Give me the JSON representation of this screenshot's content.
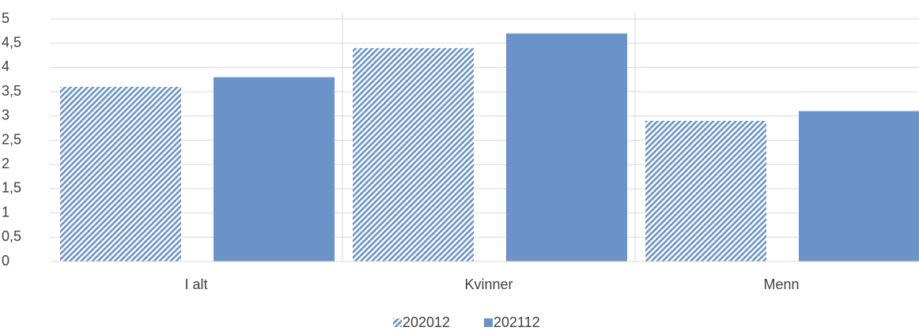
{
  "chart_data": {
    "type": "bar",
    "categories": [
      "I alt",
      "Kvinner",
      "Menn"
    ],
    "series": [
      {
        "name": "202012",
        "color": "#6a93c9",
        "pattern": "hatch",
        "values": [
          3.6,
          4.4,
          2.9
        ]
      },
      {
        "name": "202112",
        "color": "#6a93c9",
        "pattern": "solid",
        "values": [
          3.8,
          4.7,
          3.1
        ]
      }
    ],
    "ylim": [
      0,
      5
    ],
    "yticks": [
      0,
      {
        "value": 0.5,
        "label": "0,5"
      },
      1,
      {
        "value": 1.5,
        "label": "1,5"
      },
      2,
      {
        "value": 2.5,
        "label": "2,5"
      },
      3,
      {
        "value": 3.5,
        "label": "3,5"
      },
      4,
      {
        "value": 4.5,
        "label": "4,5"
      },
      5
    ],
    "grid": true,
    "legend": "bottom"
  }
}
